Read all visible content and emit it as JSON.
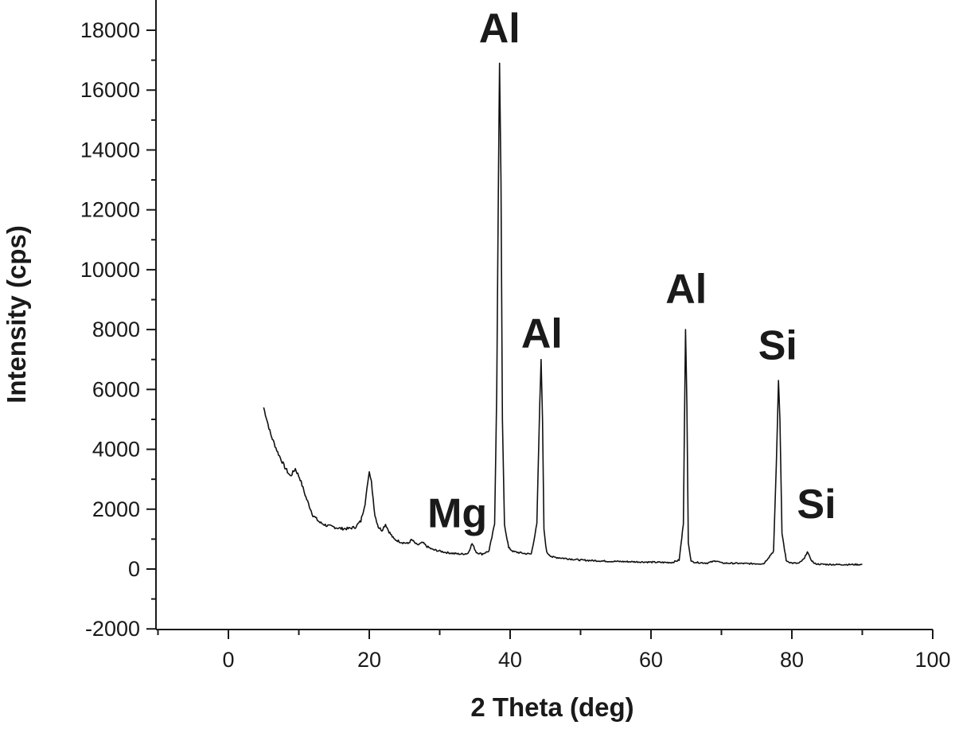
{
  "chart_data": {
    "type": "line",
    "title": "",
    "xlabel": "2 Theta (deg)",
    "ylabel": "Intensity (cps)",
    "xlim": [
      -10,
      100
    ],
    "ylim": [
      -2000,
      18500
    ],
    "x_ticks": [
      0,
      20,
      40,
      60,
      80,
      100
    ],
    "y_ticks": [
      -2000,
      0,
      2000,
      4000,
      6000,
      8000,
      10000,
      12000,
      14000,
      16000,
      18000
    ],
    "grid": false,
    "line_color": "#111111",
    "series": [
      {
        "x": [
          5,
          6,
          7,
          8,
          8.8,
          9.5,
          10.2,
          11,
          12,
          13,
          14,
          15,
          16,
          17,
          18,
          18.8,
          19.4,
          19.8,
          20.0,
          20.3,
          20.8,
          21.3,
          21.8,
          22.3,
          22.8,
          23.5,
          24.5,
          25.5,
          26.0,
          26.8,
          27.6,
          28.2,
          29,
          30,
          31,
          32,
          33,
          34,
          34.6,
          35.2,
          36,
          37,
          37.8,
          38.1,
          38.3,
          38.5,
          38.7,
          38.9,
          39.2,
          39.8,
          40.5,
          41,
          42,
          43,
          43.8,
          44.2,
          44.4,
          44.6,
          44.8,
          45.2,
          46,
          48,
          50,
          52,
          54,
          56,
          58,
          60,
          62,
          63,
          64,
          64.6,
          64.9,
          65.1,
          65.3,
          65.7,
          66.5,
          68,
          69.3,
          70,
          72,
          74,
          76,
          77.4,
          77.8,
          78.1,
          78.3,
          78.6,
          79.2,
          80,
          81,
          81.8,
          82.2,
          82.6,
          83.2,
          84,
          86,
          88,
          90
        ],
        "y": [
          5400,
          4500,
          3900,
          3400,
          3100,
          3350,
          3000,
          2400,
          1800,
          1550,
          1450,
          1400,
          1350,
          1350,
          1400,
          1600,
          2200,
          2900,
          3250,
          2900,
          1800,
          1400,
          1300,
          1500,
          1250,
          1000,
          900,
          850,
          980,
          800,
          880,
          750,
          650,
          600,
          550,
          520,
          500,
          520,
          850,
          560,
          500,
          600,
          1500,
          6000,
          12000,
          16900,
          13000,
          5000,
          1500,
          700,
          580,
          560,
          520,
          500,
          1500,
          5500,
          7000,
          5000,
          1300,
          550,
          400,
          350,
          300,
          280,
          260,
          250,
          240,
          230,
          220,
          220,
          300,
          1500,
          8000,
          5500,
          900,
          250,
          220,
          200,
          280,
          200,
          190,
          180,
          180,
          600,
          3500,
          6300,
          5000,
          1200,
          280,
          200,
          190,
          350,
          600,
          350,
          180,
          160,
          150,
          150,
          150
        ]
      }
    ],
    "annotations": [
      {
        "text": "Al",
        "x": 38.5,
        "y": 17600
      },
      {
        "text": "Al",
        "x": 44.5,
        "y": 7400
      },
      {
        "text": "Al",
        "x": 65.0,
        "y": 8900
      },
      {
        "text": "Si",
        "x": 78.0,
        "y": 7000
      },
      {
        "text": "Mg",
        "x": 32.5,
        "y": 1400
      },
      {
        "text": "Si",
        "x": 83.5,
        "y": 1700
      }
    ]
  }
}
